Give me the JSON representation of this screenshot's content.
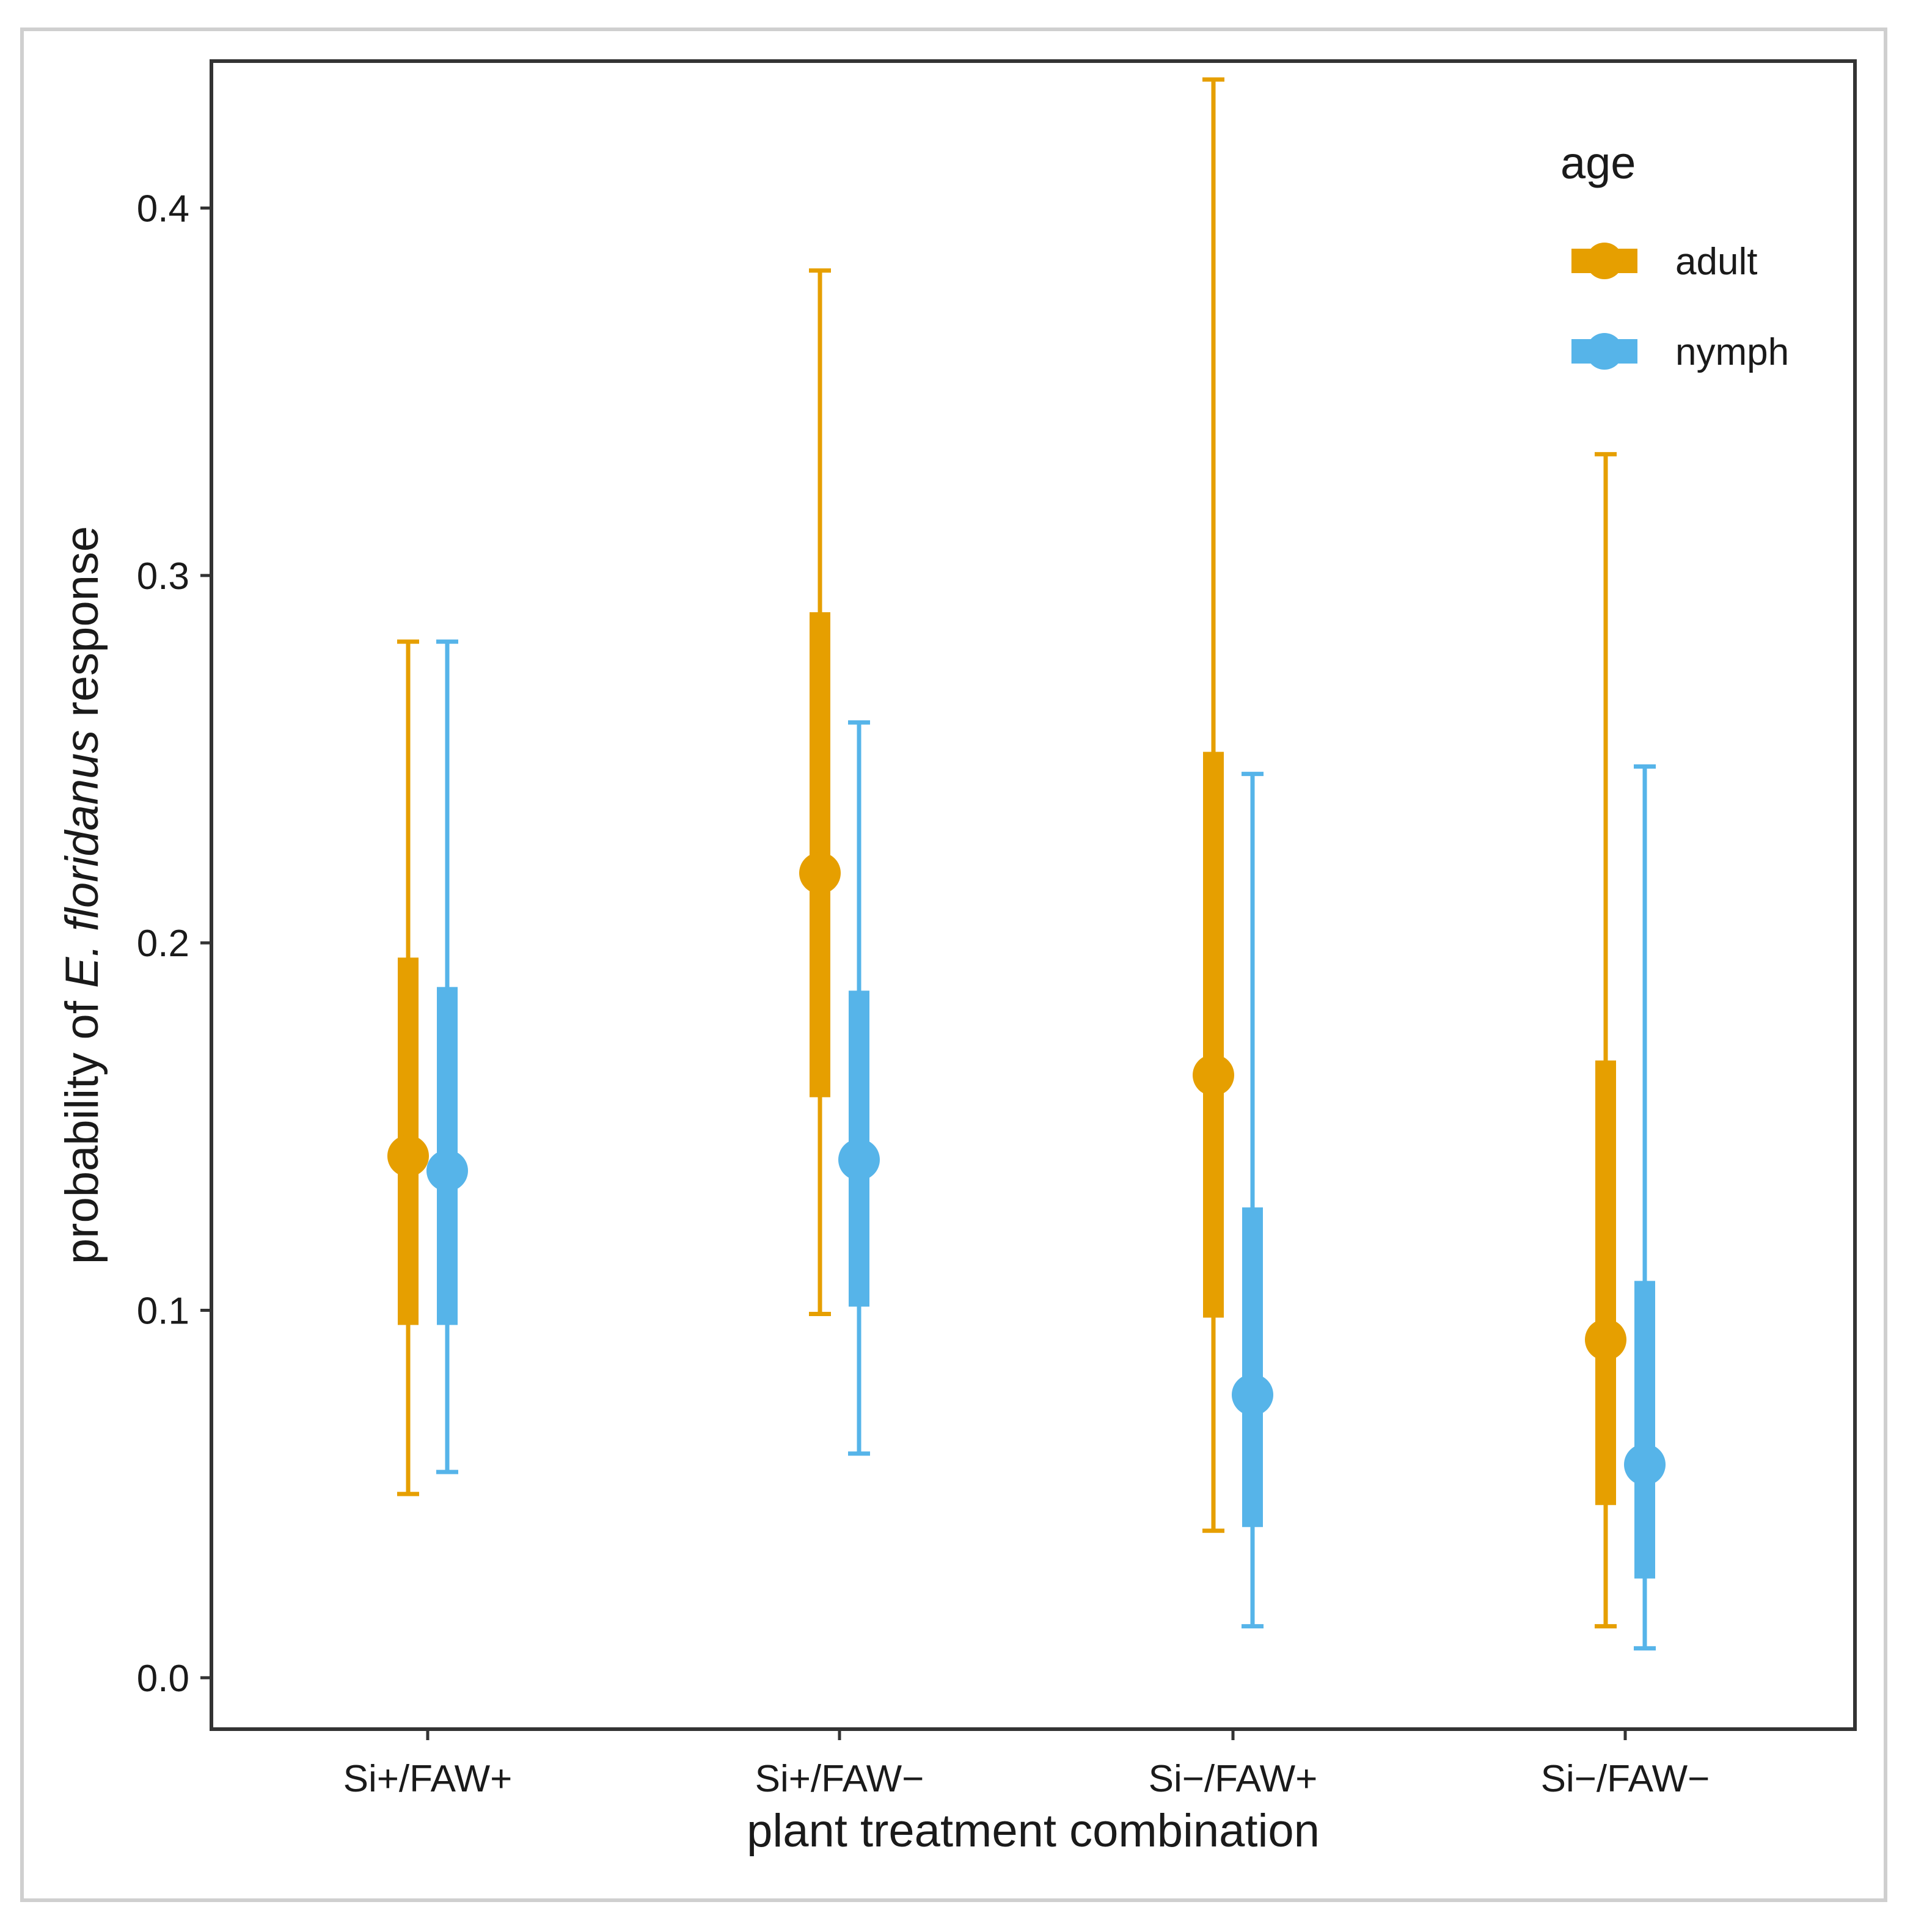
{
  "chart_data": {
    "type": "interval",
    "title": "",
    "xlabel": "plant treatment combination",
    "ylabel": {
      "prefix": "probability of ",
      "italic": "E. floridanus",
      "suffix": " response"
    },
    "ylim": [
      -0.014,
      0.44
    ],
    "yticks": [
      0.0,
      0.1,
      0.2,
      0.3,
      0.4
    ],
    "ytick_labels": [
      "0.0",
      "0.1",
      "0.2",
      "0.3",
      "0.4"
    ],
    "categories": [
      "Si+/FAW+",
      "Si+/FAW−",
      "Si−/FAW+",
      "Si−/FAW−"
    ],
    "grid": false,
    "legend": {
      "title": "age",
      "position": "top-right"
    },
    "series": [
      {
        "name": "adult",
        "color": "#E69F00",
        "estimate": [
          0.142,
          0.219,
          0.164,
          0.092
        ],
        "inner_lower": [
          0.096,
          0.158,
          0.098,
          0.047
        ],
        "inner_upper": [
          0.196,
          0.29,
          0.252,
          0.168
        ],
        "outer_lower": [
          0.05,
          0.099,
          0.04,
          0.014
        ],
        "outer_upper": [
          0.282,
          0.383,
          0.435,
          0.333
        ]
      },
      {
        "name": "nymph",
        "color": "#56B4E9",
        "estimate": [
          0.138,
          0.141,
          0.077,
          0.058
        ],
        "inner_lower": [
          0.096,
          0.101,
          0.041,
          0.027
        ],
        "inner_upper": [
          0.188,
          0.187,
          0.128,
          0.108
        ],
        "outer_lower": [
          0.056,
          0.061,
          0.014,
          0.008
        ],
        "outer_upper": [
          0.282,
          0.26,
          0.246,
          0.248
        ]
      }
    ]
  }
}
